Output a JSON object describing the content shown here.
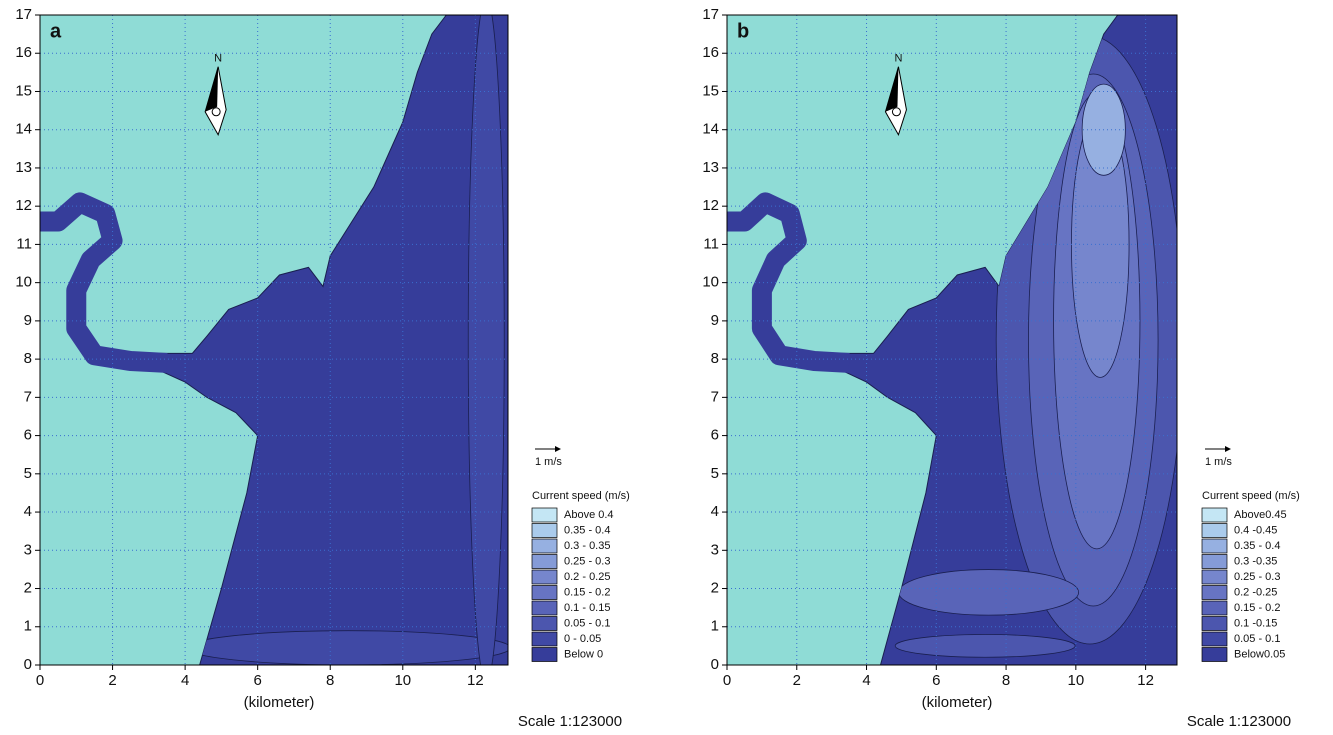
{
  "chart_data": [
    {
      "type": "contour",
      "panel_label": "a",
      "x_label": "(kilometer)",
      "scale_text": "Scale 1:123000",
      "xlim": [
        0,
        12.9
      ],
      "ylim": [
        0,
        17
      ],
      "xticks": [
        0,
        2,
        4,
        6,
        8,
        10,
        12
      ],
      "yticks": [
        0,
        1,
        2,
        3,
        4,
        5,
        6,
        7,
        8,
        9,
        10,
        11,
        12,
        13,
        14,
        15,
        16,
        17
      ],
      "grid": true,
      "north_label": "N",
      "vector_key": "1 m/s",
      "legend_title": "Current speed (m/s)",
      "levels": [
        {
          "label": "Above  0.4",
          "color": "#c4e6f4"
        },
        {
          "label": "0.35 -  0.4",
          "color": "#aacbec"
        },
        {
          "label": "0.3 - 0.35",
          "color": "#96b0e1"
        },
        {
          "label": "0.25 -  0.3",
          "color": "#859bd7"
        },
        {
          "label": "0.2 - 0.25",
          "color": "#7686cd"
        },
        {
          "label": "0.15 -  0.2",
          "color": "#6774c3"
        },
        {
          "label": "0.1 - 0.15",
          "color": "#5964b8"
        },
        {
          "label": "0.05 -  0.1",
          "color": "#4c56ae"
        },
        {
          "label": "0 - 0.05",
          "color": "#4049a5"
        },
        {
          "label": "Below    0",
          "color": "#363d9a"
        }
      ]
    },
    {
      "type": "contour",
      "panel_label": "b",
      "x_label": "(kilometer)",
      "scale_text": "Scale 1:123000",
      "xlim": [
        0,
        12.9
      ],
      "ylim": [
        0,
        17
      ],
      "xticks": [
        0,
        2,
        4,
        6,
        8,
        10,
        12
      ],
      "yticks": [
        0,
        1,
        2,
        3,
        4,
        5,
        6,
        7,
        8,
        9,
        10,
        11,
        12,
        13,
        14,
        15,
        16,
        17
      ],
      "grid": true,
      "north_label": "N",
      "vector_key": "1 m/s",
      "legend_title": "Current speed (m/s)",
      "levels": [
        {
          "label": "Above0.45",
          "color": "#c4e6f4"
        },
        {
          "label": "0.4 -0.45",
          "color": "#aacbec"
        },
        {
          "label": "0.35 -  0.4",
          "color": "#96b0e1"
        },
        {
          "label": "0.3 -0.35",
          "color": "#859bd7"
        },
        {
          "label": "0.25 -  0.3",
          "color": "#7686cd"
        },
        {
          "label": "0.2 -0.25",
          "color": "#6774c3"
        },
        {
          "label": "0.15 -  0.2",
          "color": "#5964b8"
        },
        {
          "label": "0.1 -0.15",
          "color": "#4c56ae"
        },
        {
          "label": "0.05 -  0.1",
          "color": "#4049a5"
        },
        {
          "label": "Below0.05",
          "color": "#363d9a"
        }
      ]
    }
  ]
}
